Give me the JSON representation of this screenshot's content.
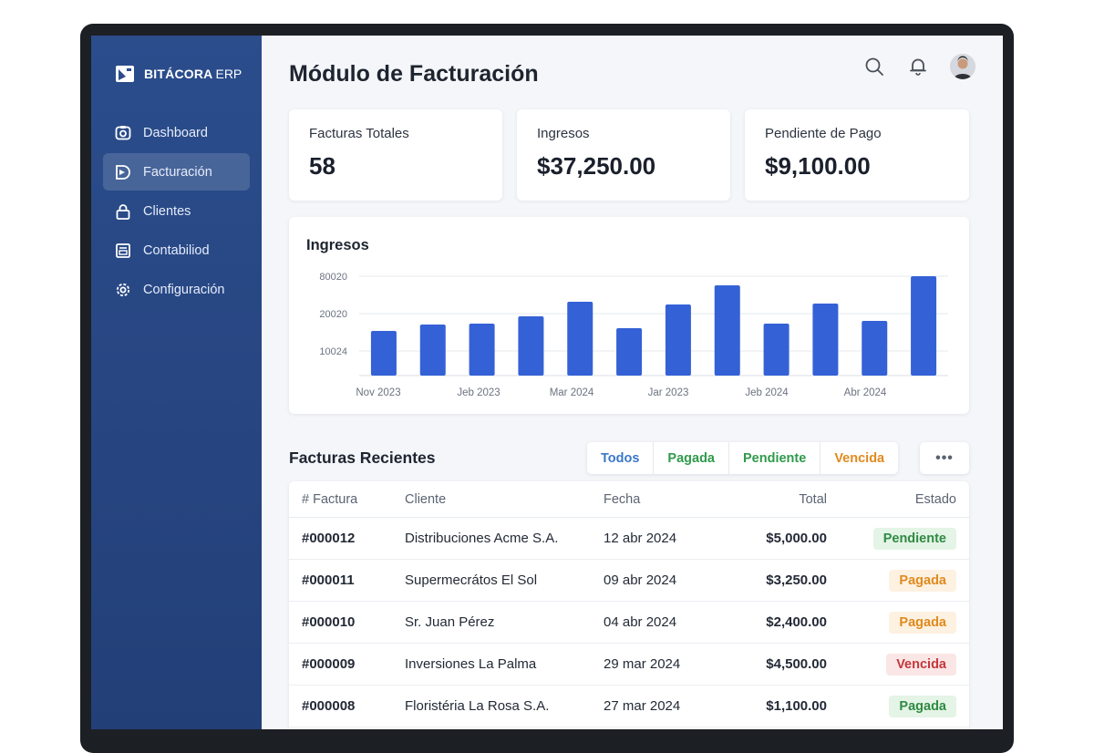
{
  "brand": {
    "name": "BITÁCORA",
    "suffix": "ERP"
  },
  "sidebar": {
    "items": [
      {
        "label": "Dashboard",
        "icon": "dashboard-icon"
      },
      {
        "label": "Facturación",
        "icon": "invoice-icon",
        "active": true
      },
      {
        "label": "Clientes",
        "icon": "lock-icon"
      },
      {
        "label": "Contabiliod",
        "icon": "ledger-icon"
      },
      {
        "label": "Configuración",
        "icon": "gear-icon"
      }
    ]
  },
  "header": {
    "title": "Módulo de Facturación",
    "icons": [
      "search-icon",
      "bell-icon",
      "user-avatar"
    ]
  },
  "kpis": [
    {
      "label": "Facturas Totales",
      "value": "58"
    },
    {
      "label": "Ingresos",
      "value": "$37,250.00"
    },
    {
      "label": "Pendiente de Pago",
      "value": "$9,100.00"
    }
  ],
  "chart_data": {
    "type": "bar",
    "title": "Ingresos",
    "y_tick_labels": [
      "80020",
      "20020",
      "10024"
    ],
    "x_tick_labels": [
      "Nov 2023",
      "Jeb 2023",
      "Mar 2024",
      "Jar 2023",
      "Jeb 2024",
      "Abr 2024"
    ],
    "bar_relative_values": [
      0.49,
      0.56,
      0.57,
      0.65,
      0.81,
      0.52,
      0.78,
      0.99,
      0.57,
      0.79,
      0.6,
      1.09
    ],
    "color": "#3461d6",
    "grid": true,
    "legend": "none"
  },
  "recent": {
    "title": "Facturas Recientes",
    "filters": [
      {
        "label": "Todos",
        "color": "#3a78c9"
      },
      {
        "label": "Pagada",
        "color": "#2f9a4b"
      },
      {
        "label": "Pendiente",
        "color": "#2f9a4b"
      },
      {
        "label": "Vencida",
        "color": "#e08a1e"
      }
    ],
    "more_label": "•••",
    "columns": [
      "# Factura",
      "Cliente",
      "Fecha",
      "Total",
      "Estado"
    ],
    "rows": [
      {
        "id": "#000012",
        "cliente": "Distribuciones Acme S.A.",
        "fecha": "12 abr 2024",
        "total": "$5,000.00",
        "estado": "Pendiente",
        "estado_color": "#2f8a43",
        "estado_bg": "#e4f4e6"
      },
      {
        "id": "#000011",
        "cliente": "Supermecrátos El Sol",
        "fecha": "09 abr 2024",
        "total": "$3,250.00",
        "estado": "Pagada",
        "estado_color": "#e08a1e",
        "estado_bg": "#fdf1e1"
      },
      {
        "id": "#000010",
        "cliente": "Sr. Juan Pérez",
        "fecha": "04 abr 2024",
        "total": "$2,400.00",
        "estado": "Pagada",
        "estado_color": "#e08a1e",
        "estado_bg": "#fdf1e1"
      },
      {
        "id": "#000009",
        "cliente": "Inversiones La Palma",
        "fecha": "29 mar 2024",
        "total": "$4,500.00",
        "estado": "Vencida",
        "estado_color": "#c4383c",
        "estado_bg": "#fbe6e6"
      },
      {
        "id": "#000008",
        "cliente": "Floristéria La Rosa S.A.",
        "fecha": "27 mar 2024",
        "total": "$1,100.00",
        "estado": "Pagada",
        "estado_color": "#2f8a43",
        "estado_bg": "#e4f4e6"
      }
    ]
  }
}
